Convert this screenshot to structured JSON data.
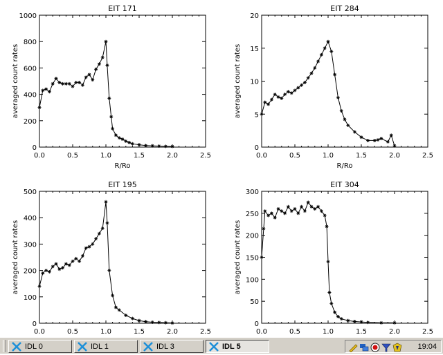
{
  "taskbar": {
    "items": [
      {
        "label": "IDL 0",
        "active": false
      },
      {
        "label": "IDL 1",
        "active": false
      },
      {
        "label": "IDL 3",
        "active": false
      },
      {
        "label": "IDL 5",
        "active": true
      }
    ],
    "tray_icons": [
      "pencil-icon",
      "network-icon",
      "record-icon",
      "filter-icon",
      "security-icon"
    ],
    "clock": "19:04"
  },
  "chart_data": [
    {
      "type": "line",
      "title": "EIT 171",
      "xlabel": "R/Ro",
      "ylabel": "averaged count rates",
      "xlim": [
        0,
        2.5
      ],
      "ylim": [
        0,
        1000
      ],
      "xticks": [
        "0.0",
        "0.5",
        "1.0",
        "1.5",
        "2.0",
        "2.5"
      ],
      "yticks": [
        "0",
        "200",
        "400",
        "600",
        "800",
        "1000"
      ],
      "marker": "asterisk",
      "x": [
        0.0,
        0.05,
        0.1,
        0.15,
        0.2,
        0.25,
        0.3,
        0.35,
        0.4,
        0.45,
        0.5,
        0.55,
        0.6,
        0.65,
        0.7,
        0.75,
        0.8,
        0.85,
        0.9,
        0.95,
        1.0,
        1.02,
        1.05,
        1.08,
        1.1,
        1.15,
        1.2,
        1.25,
        1.3,
        1.35,
        1.4,
        1.5,
        1.6,
        1.7,
        1.8,
        1.9,
        2.0
      ],
      "y": [
        300,
        430,
        440,
        420,
        480,
        520,
        490,
        480,
        480,
        480,
        460,
        490,
        490,
        470,
        530,
        550,
        510,
        590,
        630,
        680,
        800,
        620,
        370,
        230,
        140,
        90,
        70,
        60,
        45,
        35,
        25,
        18,
        12,
        10,
        8,
        6,
        5
      ]
    },
    {
      "type": "line",
      "title": "EIT 284",
      "xlabel": "R/Ro",
      "ylabel": "averaged count rates",
      "xlim": [
        0,
        2.5
      ],
      "ylim": [
        0,
        20
      ],
      "xticks": [
        "0.0",
        "0.5",
        "1.0",
        "1.5",
        "2.0",
        "2.5"
      ],
      "yticks": [
        "0",
        "5",
        "10",
        "15",
        "20"
      ],
      "marker": "asterisk",
      "x": [
        0.0,
        0.05,
        0.1,
        0.15,
        0.2,
        0.25,
        0.3,
        0.35,
        0.4,
        0.45,
        0.5,
        0.55,
        0.6,
        0.65,
        0.7,
        0.75,
        0.8,
        0.85,
        0.9,
        0.95,
        1.0,
        1.05,
        1.1,
        1.15,
        1.2,
        1.25,
        1.3,
        1.4,
        1.5,
        1.6,
        1.7,
        1.75,
        1.8,
        1.9,
        1.95,
        2.0
      ],
      "y": [
        5,
        6.8,
        6.5,
        7.2,
        8.0,
        7.6,
        7.4,
        8.0,
        8.4,
        8.2,
        8.6,
        9.0,
        9.4,
        9.8,
        10.5,
        11.2,
        12.0,
        13.0,
        14.0,
        15.0,
        16.0,
        14.5,
        11.0,
        7.5,
        5.5,
        4.2,
        3.3,
        2.3,
        1.5,
        1.0,
        1.0,
        1.1,
        1.3,
        0.8,
        1.8,
        0.2
      ]
    },
    {
      "type": "line",
      "title": "EIT 195",
      "xlabel": "",
      "ylabel": "averaged count rates",
      "xlim": [
        0,
        2.5
      ],
      "ylim": [
        0,
        500
      ],
      "xticks": [
        "0.0",
        "0.5",
        "1.0",
        "1.5",
        "2.0",
        "2.5"
      ],
      "yticks": [
        "0",
        "100",
        "200",
        "300",
        "400",
        "500"
      ],
      "marker": "asterisk",
      "x": [
        0.0,
        0.05,
        0.1,
        0.15,
        0.2,
        0.25,
        0.3,
        0.35,
        0.4,
        0.45,
        0.5,
        0.55,
        0.6,
        0.65,
        0.7,
        0.75,
        0.8,
        0.85,
        0.9,
        0.95,
        1.0,
        1.02,
        1.05,
        1.1,
        1.15,
        1.2,
        1.3,
        1.4,
        1.5,
        1.6,
        1.7,
        1.8,
        1.9,
        2.0
      ],
      "y": [
        140,
        190,
        200,
        195,
        215,
        225,
        205,
        210,
        225,
        220,
        235,
        245,
        235,
        255,
        285,
        290,
        300,
        320,
        340,
        360,
        460,
        380,
        200,
        105,
        60,
        50,
        30,
        18,
        10,
        6,
        4,
        3,
        2,
        1
      ]
    },
    {
      "type": "line",
      "title": "EIT 304",
      "xlabel": "",
      "ylabel": "averaged count rates",
      "xlim": [
        0,
        2.5
      ],
      "ylim": [
        0,
        300
      ],
      "xticks": [
        "0.0",
        "0.5",
        "1.0",
        "1.5",
        "2.0",
        "2.5"
      ],
      "yticks": [
        "0",
        "50",
        "100",
        "150",
        "200",
        "250",
        "300"
      ],
      "marker": "asterisk",
      "x": [
        0.0,
        0.03,
        0.05,
        0.1,
        0.15,
        0.2,
        0.25,
        0.3,
        0.35,
        0.4,
        0.45,
        0.5,
        0.55,
        0.6,
        0.65,
        0.7,
        0.75,
        0.8,
        0.85,
        0.9,
        0.95,
        0.98,
        1.0,
        1.02,
        1.05,
        1.1,
        1.15,
        1.2,
        1.3,
        1.4,
        1.5,
        1.6,
        1.8,
        2.0
      ],
      "y": [
        150,
        215,
        255,
        245,
        250,
        240,
        260,
        255,
        250,
        265,
        255,
        260,
        250,
        265,
        255,
        275,
        265,
        260,
        265,
        255,
        245,
        220,
        140,
        70,
        45,
        25,
        15,
        10,
        6,
        4,
        3,
        2,
        1,
        1
      ]
    }
  ]
}
